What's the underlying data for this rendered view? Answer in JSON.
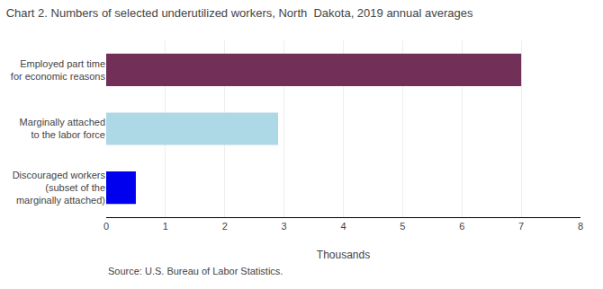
{
  "chart_data": {
    "type": "bar",
    "orientation": "horizontal",
    "title": "Chart 2. Numbers of selected underutilized workers, North  Dakota, 2019 annual averages",
    "categories": [
      "Discouraged workers\n(subset of the\nmarginally attached)",
      "Marginally attached\nto the labor force",
      "Employed part time\nfor economic reasons"
    ],
    "values": [
      0.5,
      2.9,
      7.0
    ],
    "colors": [
      "#0000EE",
      "#ADD8E6",
      "#722F57"
    ],
    "xlabel": "Thousands",
    "xlim": [
      0,
      8
    ],
    "xticks": [
      0,
      1,
      2,
      3,
      4,
      5,
      6,
      7,
      8
    ],
    "grid": true,
    "annotations": [
      "Source: U.S. Bureau of Labor Statistics."
    ]
  }
}
